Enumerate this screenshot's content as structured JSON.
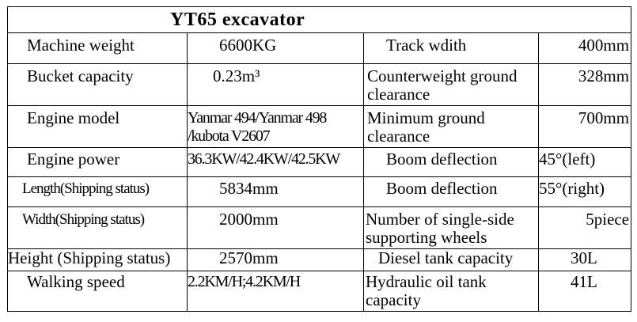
{
  "title": "YT65  excavator",
  "rows": [
    {
      "label1": "Machine weight",
      "value1": "6600KG",
      "label2": "Track wdith",
      "value2": "400mm"
    },
    {
      "label1": "Bucket capacity",
      "value1": "0.23m³",
      "label2": "Counterweight ground clearance",
      "value2": "328mm"
    },
    {
      "label1": "Engine model",
      "value1": "Yanmar 494/Yanmar 498 /kubota V2607",
      "label2": "Minimum ground clearance",
      "value2": "700mm"
    },
    {
      "label1": "Engine power",
      "value1": "36.3KW/42.4KW/42.5KW",
      "label2": "Boom deflection",
      "value2": "45°(left)"
    },
    {
      "label1": "Length(Shipping status)",
      "value1": "5834mm",
      "label2": "Boom deflection",
      "value2": "55°(right)"
    },
    {
      "label1": "Width(Shipping status)",
      "value1": "2000mm",
      "label2": "Number of single-side supporting wheels",
      "value2": "5piece"
    },
    {
      "label1": "Height (Shipping status)",
      "value1": "2570mm",
      "label2": "Diesel tank capacity",
      "value2": "30L"
    },
    {
      "label1": "Walking speed",
      "value1": "2.2KM/H;4.2KM/H",
      "label2": "Hydraulic oil tank capacity",
      "value2": "41L"
    }
  ]
}
